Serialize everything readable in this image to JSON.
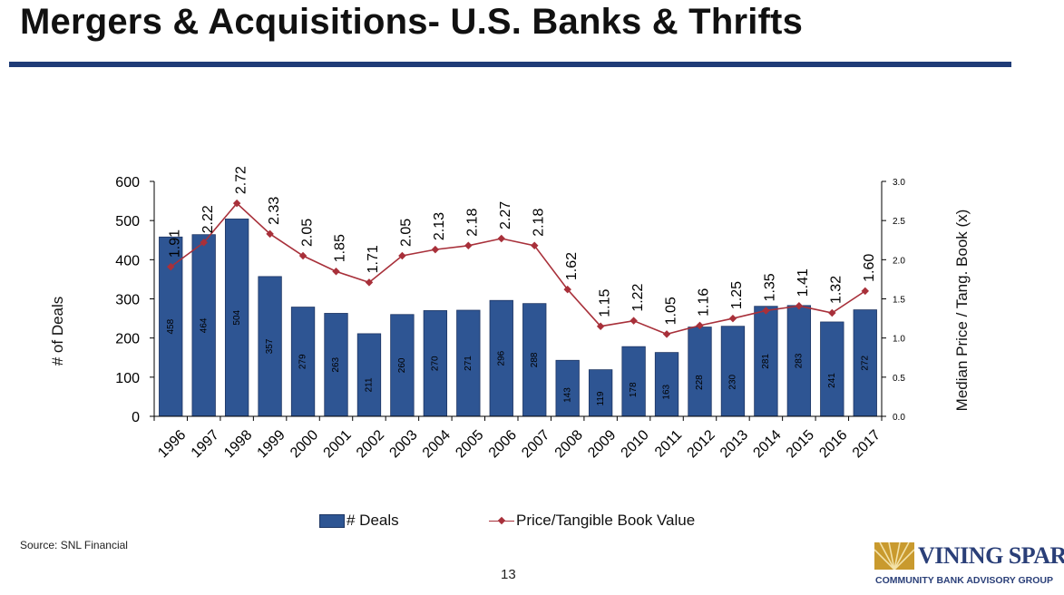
{
  "page": {
    "title": "Mergers & Acquisitions- U.S. Banks & Thrifts",
    "source": "Source: SNL Financial",
    "page_number": "13",
    "logo": {
      "name": "VINING SPARKS",
      "tagline": "COMMUNITY BANK ADVISORY GROUP"
    }
  },
  "chart_data": {
    "type": "bar",
    "categories": [
      "1996",
      "1997",
      "1998",
      "1999",
      "2000",
      "2001",
      "2002",
      "2003",
      "2004",
      "2005",
      "2006",
      "2007",
      "2008",
      "2009",
      "2010",
      "2011",
      "2012",
      "2013",
      "2014",
      "2015",
      "2016",
      "2017"
    ],
    "series": [
      {
        "name": "# Deals",
        "type": "bar",
        "axis": "left",
        "values": [
          458,
          464,
          504,
          357,
          279,
          263,
          211,
          260,
          270,
          271,
          296,
          288,
          143,
          119,
          178,
          163,
          228,
          230,
          281,
          283,
          241,
          272
        ],
        "color": "#2e5593"
      },
      {
        "name": "Price/Tangible Book Value",
        "type": "line",
        "axis": "right",
        "values": [
          1.91,
          2.22,
          2.72,
          2.33,
          2.05,
          1.85,
          1.71,
          2.05,
          2.13,
          2.18,
          2.27,
          2.18,
          1.62,
          1.15,
          1.22,
          1.05,
          1.16,
          1.25,
          1.35,
          1.41,
          1.32,
          1.6
        ],
        "labels": [
          "1.91",
          "2.22",
          "2.72",
          "2.33",
          "2.05",
          "1.85",
          "1.71",
          "2.05",
          "2.13",
          "2.18",
          "2.27",
          "2.18",
          "1.62",
          "1.15",
          "1.22",
          "1.05",
          "1.16",
          "1.25",
          "1.35",
          "1.41",
          "1.32",
          "1.60"
        ],
        "color": "#a8303a"
      }
    ],
    "ylabel": "# of Deals",
    "ylim": [
      0,
      600
    ],
    "yticks": [
      "0",
      "100",
      "200",
      "300",
      "400",
      "500",
      "600"
    ],
    "y2label": "Median Price / Tang. Book (x)",
    "y2lim": [
      0,
      3
    ],
    "y2ticks": [
      "0.0",
      "0.5",
      "1.0",
      "1.5",
      "2.0",
      "2.5",
      "3.0"
    ],
    "grid": false,
    "legend_position": "bottom"
  }
}
